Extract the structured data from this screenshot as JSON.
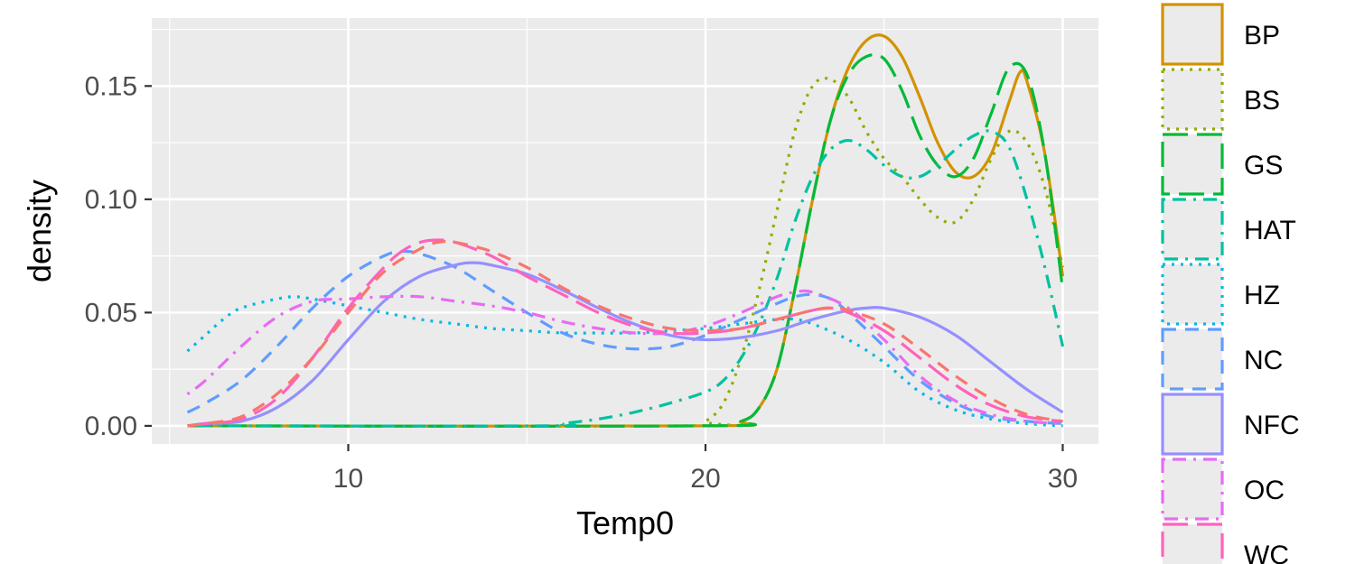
{
  "chart_data": {
    "type": "line",
    "xlabel": "Temp0",
    "ylabel": "density",
    "xlim": [
      4.5,
      31.0
    ],
    "ylim": [
      -0.008,
      0.18
    ],
    "x_ticks": [
      10,
      20,
      30
    ],
    "y_ticks": [
      0.0,
      0.05,
      0.1,
      0.15
    ],
    "x_tick_labels": [
      "10",
      "20",
      "30"
    ],
    "y_tick_labels": [
      "0.00",
      "0.05",
      "0.10",
      "0.15"
    ],
    "grid": true,
    "legend_position": "right",
    "series": [
      {
        "name": "BP",
        "color": "#D39200",
        "dash": "solid",
        "points": [
          [
            5.5,
            0
          ],
          [
            20,
            0
          ],
          [
            21,
            0.002
          ],
          [
            21.5,
            0.008
          ],
          [
            22,
            0.025
          ],
          [
            22.5,
            0.06
          ],
          [
            23,
            0.1
          ],
          [
            23.5,
            0.135
          ],
          [
            24,
            0.158
          ],
          [
            24.5,
            0.17
          ],
          [
            25,
            0.172
          ],
          [
            25.5,
            0.163
          ],
          [
            26,
            0.145
          ],
          [
            26.5,
            0.125
          ],
          [
            27,
            0.112
          ],
          [
            27.5,
            0.11
          ],
          [
            28,
            0.12
          ],
          [
            28.5,
            0.143
          ],
          [
            28.8,
            0.156
          ],
          [
            29,
            0.152
          ],
          [
            29.5,
            0.12
          ],
          [
            30,
            0.066
          ]
        ]
      },
      {
        "name": "BS",
        "color": "#93AA00",
        "dash": "dotted",
        "points": [
          [
            5.5,
            0
          ],
          [
            19.5,
            0
          ],
          [
            20,
            0.002
          ],
          [
            20.5,
            0.01
          ],
          [
            21,
            0.03
          ],
          [
            21.5,
            0.06
          ],
          [
            22,
            0.095
          ],
          [
            22.5,
            0.13
          ],
          [
            23,
            0.15
          ],
          [
            23.5,
            0.153
          ],
          [
            24,
            0.145
          ],
          [
            24.5,
            0.13
          ],
          [
            25,
            0.118
          ],
          [
            25.5,
            0.11
          ],
          [
            26,
            0.1
          ],
          [
            26.5,
            0.092
          ],
          [
            27,
            0.09
          ],
          [
            27.5,
            0.1
          ],
          [
            28,
            0.118
          ],
          [
            28.5,
            0.13
          ],
          [
            29,
            0.125
          ],
          [
            29.5,
            0.105
          ],
          [
            30,
            0.07
          ]
        ]
      },
      {
        "name": "GS",
        "color": "#00BA38",
        "dash": "longdash",
        "points": [
          [
            5.5,
            0
          ],
          [
            20,
            0
          ],
          [
            21,
            0.002
          ],
          [
            21.5,
            0.008
          ],
          [
            22,
            0.025
          ],
          [
            22.5,
            0.06
          ],
          [
            23,
            0.1
          ],
          [
            23.5,
            0.135
          ],
          [
            24,
            0.155
          ],
          [
            24.5,
            0.163
          ],
          [
            25,
            0.162
          ],
          [
            25.5,
            0.148
          ],
          [
            26,
            0.128
          ],
          [
            26.5,
            0.115
          ],
          [
            27,
            0.11
          ],
          [
            27.5,
            0.118
          ],
          [
            28,
            0.138
          ],
          [
            28.5,
            0.158
          ],
          [
            29,
            0.155
          ],
          [
            29.5,
            0.12
          ],
          [
            30,
            0.06
          ]
        ]
      },
      {
        "name": "HAT",
        "color": "#00C19F",
        "dash": "dotdash",
        "points": [
          [
            5.5,
            0
          ],
          [
            15.5,
            0
          ],
          [
            16,
            0.001
          ],
          [
            17,
            0.003
          ],
          [
            18,
            0.006
          ],
          [
            19,
            0.01
          ],
          [
            20,
            0.015
          ],
          [
            20.5,
            0.02
          ],
          [
            21,
            0.03
          ],
          [
            21.5,
            0.045
          ],
          [
            22,
            0.065
          ],
          [
            22.5,
            0.09
          ],
          [
            23,
            0.11
          ],
          [
            23.5,
            0.122
          ],
          [
            24,
            0.126
          ],
          [
            24.5,
            0.122
          ],
          [
            25,
            0.115
          ],
          [
            25.5,
            0.11
          ],
          [
            26,
            0.11
          ],
          [
            26.5,
            0.115
          ],
          [
            27,
            0.122
          ],
          [
            27.5,
            0.128
          ],
          [
            28,
            0.13
          ],
          [
            28.5,
            0.123
          ],
          [
            29,
            0.1
          ],
          [
            29.5,
            0.07
          ],
          [
            30,
            0.035
          ]
        ]
      },
      {
        "name": "HZ",
        "color": "#00B9E3",
        "dash": "dotted",
        "points": [
          [
            5.5,
            0.033
          ],
          [
            6,
            0.04
          ],
          [
            6.5,
            0.047
          ],
          [
            7,
            0.052
          ],
          [
            8,
            0.056
          ],
          [
            8.5,
            0.057
          ],
          [
            9,
            0.056
          ],
          [
            10,
            0.053
          ],
          [
            11,
            0.05
          ],
          [
            12,
            0.047
          ],
          [
            13,
            0.045
          ],
          [
            14,
            0.043
          ],
          [
            15,
            0.042
          ],
          [
            16,
            0.041
          ],
          [
            17,
            0.041
          ],
          [
            18,
            0.041
          ],
          [
            19,
            0.042
          ],
          [
            20,
            0.043
          ],
          [
            21,
            0.045
          ],
          [
            22,
            0.047
          ],
          [
            22.5,
            0.047
          ],
          [
            23,
            0.045
          ],
          [
            24,
            0.038
          ],
          [
            25,
            0.028
          ],
          [
            26,
            0.015
          ],
          [
            27,
            0.007
          ],
          [
            28,
            0.003
          ],
          [
            29,
            0.001
          ],
          [
            30,
            0
          ]
        ]
      },
      {
        "name": "NC",
        "color": "#619CFF",
        "dash": "dashed",
        "points": [
          [
            5.5,
            0.006
          ],
          [
            6,
            0.01
          ],
          [
            7,
            0.02
          ],
          [
            8,
            0.035
          ],
          [
            9,
            0.052
          ],
          [
            10,
            0.066
          ],
          [
            11,
            0.075
          ],
          [
            11.5,
            0.077
          ],
          [
            12,
            0.076
          ],
          [
            13,
            0.07
          ],
          [
            14,
            0.06
          ],
          [
            15,
            0.05
          ],
          [
            16,
            0.041
          ],
          [
            17,
            0.036
          ],
          [
            18,
            0.034
          ],
          [
            19,
            0.035
          ],
          [
            20,
            0.04
          ],
          [
            21,
            0.047
          ],
          [
            22,
            0.054
          ],
          [
            22.5,
            0.057
          ],
          [
            23,
            0.058
          ],
          [
            23.5,
            0.056
          ],
          [
            24,
            0.05
          ],
          [
            25,
            0.035
          ],
          [
            26,
            0.02
          ],
          [
            27,
            0.01
          ],
          [
            28,
            0.004
          ],
          [
            29,
            0.002
          ],
          [
            30,
            0.001
          ]
        ]
      },
      {
        "name": "NFC",
        "color": "#9590FF",
        "dash": "solid",
        "points": [
          [
            5.5,
            0
          ],
          [
            6,
            0.001
          ],
          [
            7,
            0.002
          ],
          [
            8,
            0.008
          ],
          [
            9,
            0.02
          ],
          [
            10,
            0.038
          ],
          [
            11,
            0.055
          ],
          [
            12,
            0.066
          ],
          [
            13,
            0.071
          ],
          [
            13.5,
            0.072
          ],
          [
            14,
            0.071
          ],
          [
            15,
            0.067
          ],
          [
            16,
            0.06
          ],
          [
            17,
            0.052
          ],
          [
            18,
            0.045
          ],
          [
            19,
            0.04
          ],
          [
            20,
            0.038
          ],
          [
            21,
            0.039
          ],
          [
            22,
            0.042
          ],
          [
            23,
            0.047
          ],
          [
            24,
            0.051
          ],
          [
            24.5,
            0.052
          ],
          [
            25,
            0.052
          ],
          [
            26,
            0.048
          ],
          [
            27,
            0.04
          ],
          [
            28,
            0.028
          ],
          [
            29,
            0.016
          ],
          [
            30,
            0.006
          ]
        ]
      },
      {
        "name": "OC",
        "color": "#E76BF3",
        "dash": "dotdash",
        "points": [
          [
            5.5,
            0.014
          ],
          [
            6,
            0.02
          ],
          [
            7,
            0.035
          ],
          [
            8,
            0.048
          ],
          [
            9,
            0.055
          ],
          [
            10,
            0.056
          ],
          [
            11,
            0.057
          ],
          [
            12,
            0.057
          ],
          [
            13,
            0.055
          ],
          [
            14,
            0.053
          ],
          [
            15,
            0.05
          ],
          [
            16,
            0.046
          ],
          [
            17,
            0.043
          ],
          [
            18,
            0.041
          ],
          [
            19,
            0.041
          ],
          [
            20,
            0.044
          ],
          [
            21,
            0.05
          ],
          [
            22,
            0.057
          ],
          [
            22.5,
            0.059
          ],
          [
            23,
            0.059
          ],
          [
            24,
            0.052
          ],
          [
            25,
            0.038
          ],
          [
            26,
            0.022
          ],
          [
            27,
            0.011
          ],
          [
            28,
            0.005
          ],
          [
            29,
            0.002
          ],
          [
            30,
            0.001
          ]
        ]
      },
      {
        "name": "WC",
        "color": "#FF62BC",
        "dash": "longdash",
        "points": [
          [
            5.5,
            0
          ],
          [
            6,
            0.001
          ],
          [
            7,
            0.003
          ],
          [
            8,
            0.012
          ],
          [
            9,
            0.03
          ],
          [
            10,
            0.052
          ],
          [
            11,
            0.07
          ],
          [
            11.5,
            0.077
          ],
          [
            12,
            0.081
          ],
          [
            12.5,
            0.082
          ],
          [
            13,
            0.081
          ],
          [
            14,
            0.075
          ],
          [
            15,
            0.066
          ],
          [
            16,
            0.058
          ],
          [
            17,
            0.05
          ],
          [
            18,
            0.044
          ],
          [
            19,
            0.041
          ],
          [
            20,
            0.041
          ],
          [
            21,
            0.043
          ],
          [
            22,
            0.047
          ],
          [
            23,
            0.051
          ],
          [
            23.5,
            0.052
          ],
          [
            24,
            0.05
          ],
          [
            25,
            0.042
          ],
          [
            26,
            0.03
          ],
          [
            27,
            0.018
          ],
          [
            28,
            0.009
          ],
          [
            29,
            0.004
          ],
          [
            30,
            0.002
          ]
        ]
      },
      {
        "color": "#F8766D",
        "dash": "dashed",
        "points": [
          [
            5.5,
            0
          ],
          [
            6,
            0.001
          ],
          [
            7,
            0.004
          ],
          [
            8,
            0.014
          ],
          [
            9,
            0.03
          ],
          [
            10,
            0.05
          ],
          [
            11,
            0.068
          ],
          [
            12,
            0.078
          ],
          [
            12.5,
            0.081
          ],
          [
            13,
            0.081
          ],
          [
            14,
            0.077
          ],
          [
            15,
            0.07
          ],
          [
            16,
            0.061
          ],
          [
            17,
            0.053
          ],
          [
            18,
            0.047
          ],
          [
            19,
            0.043
          ],
          [
            20,
            0.042
          ],
          [
            21,
            0.043
          ],
          [
            22,
            0.047
          ],
          [
            23,
            0.051
          ],
          [
            23.5,
            0.052
          ],
          [
            24,
            0.051
          ],
          [
            25,
            0.045
          ],
          [
            26,
            0.034
          ],
          [
            27,
            0.022
          ],
          [
            28,
            0.012
          ],
          [
            29,
            0.005
          ],
          [
            30,
            0.002
          ]
        ]
      }
    ]
  }
}
